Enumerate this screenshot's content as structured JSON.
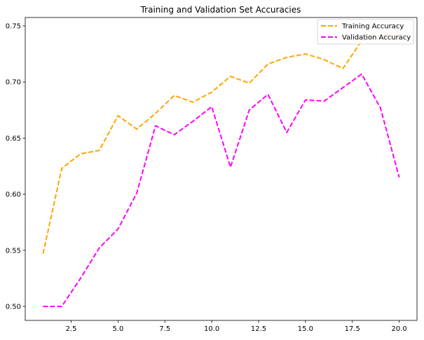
{
  "chart_data": {
    "type": "line",
    "title": "Training and Validation Set Accuracies",
    "xlabel": "",
    "ylabel": "",
    "xlim": [
      0.05,
      20.95
    ],
    "ylim": [
      0.4875,
      0.7575
    ],
    "xticks": [
      2.5,
      5.0,
      7.5,
      10.0,
      12.5,
      15.0,
      17.5,
      20.0
    ],
    "xtick_labels": [
      "2.5",
      "5.0",
      "7.5",
      "10.0",
      "12.5",
      "15.0",
      "17.5",
      "20.0"
    ],
    "yticks": [
      0.5,
      0.55,
      0.6,
      0.65,
      0.7,
      0.75
    ],
    "ytick_labels": [
      "0.50",
      "0.55",
      "0.60",
      "0.65",
      "0.70",
      "0.75"
    ],
    "grid": false,
    "legend_position": "top-right",
    "x": [
      1,
      2,
      3,
      4,
      5,
      6,
      7,
      8,
      9,
      10,
      11,
      12,
      13,
      14,
      15,
      16,
      17,
      18,
      19,
      20
    ],
    "series": [
      {
        "name": "Training Accuracy",
        "color": "#FFA500",
        "dash": "dashed",
        "values": [
          0.547,
          0.623,
          0.636,
          0.639,
          0.67,
          0.658,
          0.672,
          0.688,
          0.682,
          0.691,
          0.705,
          0.699,
          0.716,
          0.722,
          0.725,
          0.72,
          0.712,
          0.737,
          0.741,
          0.745
        ]
      },
      {
        "name": "Validation Accuracy",
        "color": "#FF00FF",
        "dash": "dashed",
        "values": [
          0.5,
          0.5,
          0.525,
          0.552,
          0.569,
          0.601,
          0.661,
          0.653,
          0.665,
          0.678,
          0.624,
          0.675,
          0.689,
          0.655,
          0.684,
          0.683,
          0.695,
          0.707,
          0.677,
          0.615
        ]
      }
    ]
  }
}
